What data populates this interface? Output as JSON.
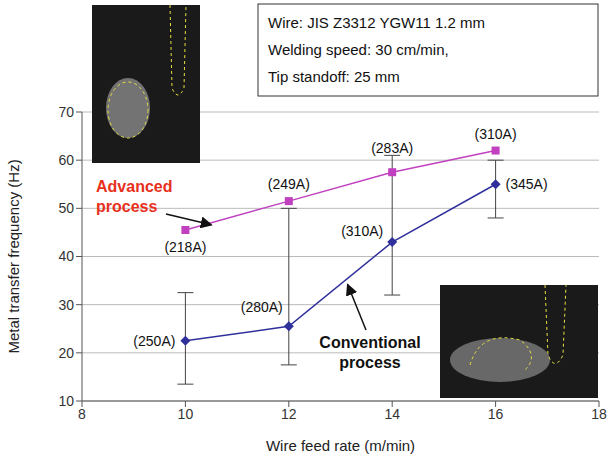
{
  "chart_data": {
    "type": "line",
    "x_label": "Wire feed rate (m/min)",
    "y_label": "Metal transfer frequency (Hz)",
    "x": [
      10,
      12,
      14,
      16
    ],
    "xlim": [
      8,
      18
    ],
    "xticks": [
      8,
      10,
      12,
      14,
      16,
      18
    ],
    "ylim": [
      10,
      70
    ],
    "yticks": [
      10,
      20,
      30,
      40,
      50,
      60,
      70
    ],
    "grid": true,
    "annotations": [
      "Wire: JIS Z3312 YGW11 1.2 mm",
      "Welding speed: 30 cm/min,",
      "Tip standoff: 25 mm"
    ],
    "series": [
      {
        "name": "Advanced process",
        "color": "#c040c0",
        "marker": "square",
        "values": [
          45.5,
          51.5,
          57.5,
          62
        ],
        "labels": [
          "(218A)",
          "(249A)",
          "(283A)",
          "(310A)"
        ]
      },
      {
        "name": "Conventional process",
        "color": "#30309c",
        "marker": "diamond",
        "values": [
          22.5,
          25.5,
          43,
          55
        ],
        "labels": [
          "(250A)",
          "(280A)",
          "(310A)",
          "(345A)"
        ],
        "error_range": [
          [
            13.5,
            32.5
          ],
          [
            17.5,
            50
          ],
          [
            32,
            61
          ],
          [
            48,
            60
          ]
        ]
      }
    ]
  }
}
